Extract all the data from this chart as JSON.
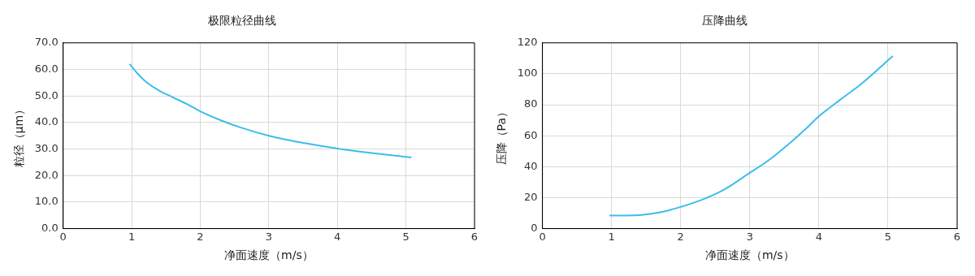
{
  "chart_data": [
    {
      "type": "line",
      "title": "极限粒径曲线",
      "xlabel": "净面速度（m/s）",
      "ylabel": "粒径（μm）",
      "xlim": [
        0,
        6
      ],
      "xticks": [
        0,
        1,
        2,
        3,
        4,
        5,
        6
      ],
      "ylim": [
        0,
        70
      ],
      "yticks": [
        {
          "value": 0,
          "label": "0.0"
        },
        {
          "value": 10,
          "label": "10.0"
        },
        {
          "value": 20,
          "label": "20.0"
        },
        {
          "value": 30,
          "label": "30.0"
        },
        {
          "value": 40,
          "label": "40.0"
        },
        {
          "value": 50,
          "label": "50.0"
        },
        {
          "value": 60,
          "label": "60.0"
        },
        {
          "value": 70,
          "label": "70.0"
        }
      ],
      "grid": true,
      "legend": false,
      "marker": "none",
      "line_style": "solid",
      "series": [
        {
          "color": "#3dbdea",
          "x": [
            0.97,
            1.1,
            1.2,
            1.4,
            1.6,
            1.8,
            2,
            2.3,
            2.6,
            3,
            3.5,
            4,
            4.5,
            5.08
          ],
          "values": [
            62,
            58,
            55.5,
            52,
            49.5,
            47,
            44.2,
            40.8,
            38,
            35,
            32.3,
            30.2,
            28.5,
            26.8
          ]
        }
      ]
    },
    {
      "type": "line",
      "title": "压降曲线",
      "xlabel": "净面速度（m/s）",
      "ylabel": "压降（Pa）",
      "xlim": [
        0,
        6
      ],
      "xticks": [
        0,
        1,
        2,
        3,
        4,
        5,
        6
      ],
      "ylim": [
        0,
        120
      ],
      "yticks": [
        0,
        20,
        40,
        60,
        80,
        100,
        120
      ],
      "grid": true,
      "legend": false,
      "marker": "none",
      "line_style": "solid",
      "series": [
        {
          "color": "#3dbdea",
          "x": [
            0.97,
            1.2,
            1.4,
            1.6,
            1.8,
            2,
            2.3,
            2.6,
            3,
            3.3,
            3.6,
            3.8,
            4,
            4.3,
            4.6,
            5.07
          ],
          "values": [
            8.5,
            8.5,
            8.7,
            9.8,
            11.5,
            14,
            18.5,
            24.5,
            36,
            45,
            56,
            64,
            72.5,
            83,
            93,
            111.5
          ]
        }
      ]
    }
  ]
}
